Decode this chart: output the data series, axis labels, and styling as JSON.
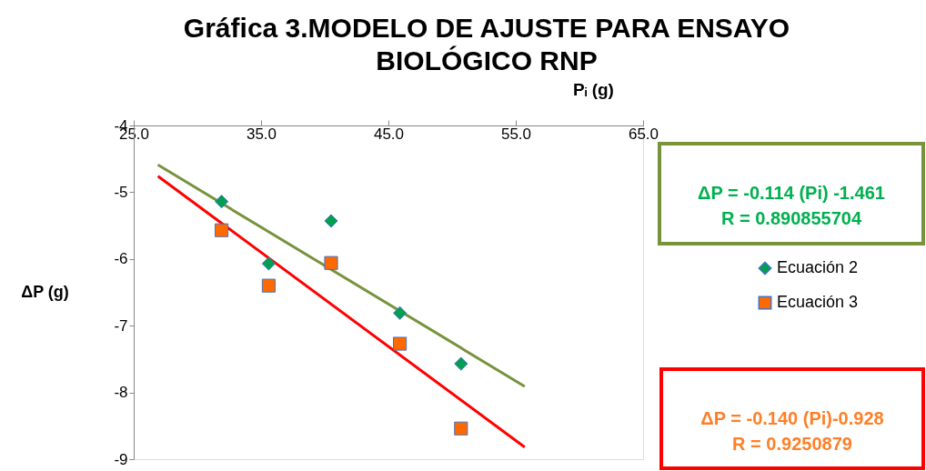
{
  "chart_data": {
    "type": "scatter",
    "title": "Gráfica 3.MODELO DE AJUSTE PARA ENSAYO BIOLÓGICO RNP",
    "xlabel": "Pᵢ (g)",
    "ylabel": "ΔP (g)",
    "xlim": [
      25,
      65
    ],
    "xticks": [
      {
        "value": 25,
        "label": "25.0"
      },
      {
        "value": 35,
        "label": "35.0"
      },
      {
        "value": 45,
        "label": "45.0"
      },
      {
        "value": 55,
        "label": "55.0"
      },
      {
        "value": 65,
        "label": "65.0"
      }
    ],
    "ylim": [
      -9,
      -4
    ],
    "yticks": [
      -9,
      -8,
      -7,
      -6,
      -5,
      -4
    ],
    "grid": false,
    "legend": "right",
    "series": [
      {
        "name": "Ecuación 2",
        "marker": "diamond",
        "color": "#00a050",
        "x": [
          31.9,
          35.6,
          40.5,
          45.9,
          50.7
        ],
        "values": [
          -5.14,
          -6.07,
          -5.43,
          -6.81,
          -7.57
        ]
      },
      {
        "name": "Ecuación 3",
        "marker": "square",
        "color": "#ff6a00",
        "x": [
          31.9,
          35.6,
          40.5,
          45.9,
          50.7
        ],
        "values": [
          -5.57,
          -6.4,
          -6.06,
          -7.27,
          -8.54
        ]
      },
      {
        "type": "line",
        "marker": "none",
        "line_style": "solid",
        "color": "#77933c",
        "x": [
          26.9,
          55.7
        ],
        "values": [
          -4.59,
          -7.91
        ]
      },
      {
        "type": "line",
        "marker": "none",
        "line_style": "solid",
        "color": "#ff0000",
        "x": [
          26.9,
          55.7
        ],
        "values": [
          -4.76,
          -8.82
        ]
      }
    ],
    "annotations": [
      "ΔP = -0.114 (Pi) -1.461\nR = 0.890855704",
      "ΔP = -0.140 (Pi)-0.928\nR = 0.9250879"
    ]
  }
}
